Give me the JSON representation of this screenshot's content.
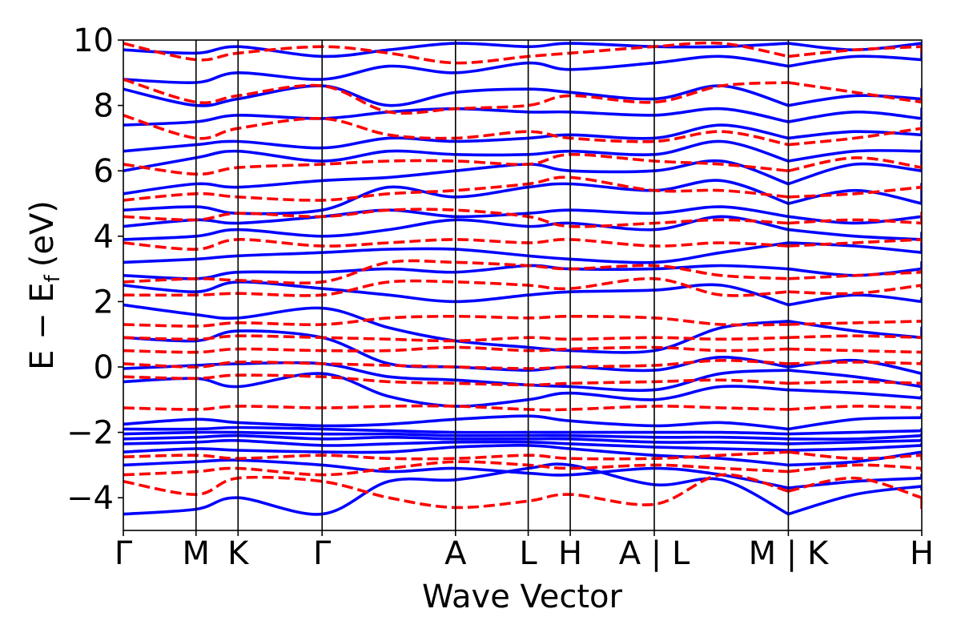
{
  "chart_data": {
    "type": "line",
    "title": "",
    "xlabel": "Wave Vector",
    "ylabel": "E − E_f (eV)",
    "ylabel_parts": {
      "main": "E − E",
      "sub": "f",
      "unit": "(eV)"
    },
    "ylim": [
      -5,
      10
    ],
    "yticks": [
      -4,
      -2,
      0,
      2,
      4,
      6,
      8,
      10
    ],
    "ytick_labels": [
      "−4",
      "−2",
      "0",
      "2",
      "4",
      "6",
      "8",
      "10"
    ],
    "kpath_labels": [
      "Γ",
      "M",
      "K",
      "Γ",
      "A",
      "L",
      "H",
      "A | L",
      "M | K",
      "H"
    ],
    "kpath_positions": [
      0.0,
      0.545,
      0.86,
      1.49,
      2.49,
      3.035,
      3.35,
      3.98,
      4.985,
      5.985
    ],
    "path_breaks": [
      3.98,
      4.985
    ],
    "xlim": [
      0.0,
      5.985
    ],
    "grid": false,
    "legend": "none",
    "series": [
      {
        "style": "solid",
        "color": "#0000ff",
        "nodes": [
          -4.5,
          -4.35,
          -4.0,
          -4.5,
          -3.5,
          -3.45,
          -3.1,
          -3.0,
          -3.6,
          -3.45,
          -4.5,
          -3.9,
          -3.65,
          -3.75
        ]
      },
      {
        "style": "solid",
        "color": "#0000ff",
        "nodes": [
          -3.0,
          -2.9,
          -2.85,
          -3.0,
          -3.2,
          -3.1,
          -3.25,
          -3.3,
          -3.1,
          -3.3,
          -3.7,
          -3.5,
          -3.4,
          -3.3
        ]
      },
      {
        "style": "solid",
        "color": "#0000ff",
        "nodes": [
          -2.6,
          -2.5,
          -2.55,
          -2.6,
          -2.6,
          -2.45,
          -2.4,
          -2.5,
          -2.7,
          -2.8,
          -3.0,
          -2.9,
          -2.6,
          -2.7
        ]
      },
      {
        "style": "solid",
        "color": "#0000ff",
        "nodes": [
          -2.35,
          -2.3,
          -2.25,
          -2.4,
          -2.35,
          -2.3,
          -2.3,
          -2.35,
          -2.45,
          -2.5,
          -2.55,
          -2.5,
          -2.4,
          -2.35
        ]
      },
      {
        "style": "solid",
        "color": "#0000ff",
        "nodes": [
          -2.2,
          -2.15,
          -2.1,
          -2.2,
          -2.15,
          -2.2,
          -2.2,
          -2.2,
          -2.3,
          -2.3,
          -2.35,
          -2.3,
          -2.25,
          -2.2
        ]
      },
      {
        "style": "solid",
        "color": "#0000ff",
        "nodes": [
          -2.05,
          -2.0,
          -2.0,
          -2.05,
          -2.05,
          -2.1,
          -2.1,
          -2.1,
          -2.15,
          -2.15,
          -2.2,
          -2.2,
          -2.1,
          -2.05
        ]
      },
      {
        "style": "solid",
        "color": "#0000ff",
        "nodes": [
          -1.9,
          -1.9,
          -1.85,
          -1.9,
          -1.95,
          -2.0,
          -2.0,
          -2.0,
          -2.0,
          -2.0,
          -2.05,
          -2.0,
          -1.95,
          -1.9
        ]
      },
      {
        "style": "solid",
        "color": "#0000ff",
        "nodes": [
          -1.75,
          -1.6,
          -1.7,
          -1.8,
          -1.75,
          -1.6,
          -1.5,
          -1.65,
          -1.8,
          -1.7,
          -1.9,
          -1.6,
          -1.55,
          -1.45
        ]
      },
      {
        "style": "solid",
        "color": "#0000ff",
        "nodes": [
          -0.45,
          -0.35,
          -0.6,
          -0.2,
          -0.9,
          -1.2,
          -1.0,
          -0.8,
          -1.0,
          -0.6,
          -0.7,
          -0.8,
          -0.95,
          -0.9
        ]
      },
      {
        "style": "solid",
        "color": "#0000ff",
        "nodes": [
          -0.05,
          0.05,
          0.1,
          0.1,
          -0.3,
          -0.4,
          -0.55,
          -0.6,
          -0.7,
          -0.2,
          -0.1,
          -0.3,
          -0.6,
          -0.7
        ]
      },
      {
        "style": "solid",
        "color": "#0000ff",
        "nodes": [
          0.9,
          0.8,
          1.1,
          0.9,
          0.1,
          0.0,
          -0.1,
          0.0,
          -0.1,
          0.3,
          0.0,
          0.2,
          -0.2,
          -0.5
        ]
      },
      {
        "style": "solid",
        "color": "#0000ff",
        "nodes": [
          1.9,
          1.6,
          1.5,
          1.8,
          1.2,
          0.8,
          0.6,
          0.5,
          0.5,
          1.2,
          1.4,
          1.1,
          0.9,
          1.2
        ]
      },
      {
        "style": "solid",
        "color": "#0000ff",
        "nodes": [
          2.5,
          2.3,
          2.6,
          2.4,
          2.2,
          2.0,
          2.2,
          2.3,
          2.35,
          2.5,
          1.9,
          2.2,
          2.0,
          2.1
        ]
      },
      {
        "style": "solid",
        "color": "#0000ff",
        "nodes": [
          2.8,
          2.7,
          2.9,
          2.9,
          3.0,
          2.9,
          3.1,
          3.0,
          3.0,
          3.1,
          3.0,
          2.8,
          3.0,
          3.2
        ]
      },
      {
        "style": "solid",
        "color": "#0000ff",
        "nodes": [
          3.2,
          3.3,
          3.4,
          3.5,
          3.6,
          3.6,
          3.4,
          3.3,
          3.2,
          3.5,
          3.8,
          3.7,
          3.5,
          3.8
        ]
      },
      {
        "style": "solid",
        "color": "#0000ff",
        "nodes": [
          3.9,
          4.0,
          4.2,
          4.0,
          4.2,
          4.5,
          4.3,
          4.4,
          4.2,
          4.6,
          4.2,
          4.0,
          3.9,
          4.1
        ]
      },
      {
        "style": "solid",
        "color": "#0000ff",
        "nodes": [
          4.3,
          4.5,
          4.4,
          4.6,
          4.8,
          4.6,
          4.7,
          4.8,
          4.7,
          4.9,
          4.6,
          4.4,
          4.6,
          4.5
        ]
      },
      {
        "style": "solid",
        "color": "#0000ff",
        "nodes": [
          4.8,
          4.9,
          4.7,
          4.8,
          5.5,
          5.2,
          5.5,
          5.6,
          5.4,
          5.7,
          5.0,
          5.4,
          5.0,
          5.6
        ]
      },
      {
        "style": "solid",
        "color": "#0000ff",
        "nodes": [
          5.3,
          5.6,
          5.5,
          5.7,
          5.8,
          6.0,
          6.2,
          6.0,
          6.0,
          6.3,
          5.6,
          6.2,
          6.0,
          6.5
        ]
      },
      {
        "style": "solid",
        "color": "#0000ff",
        "nodes": [
          6.0,
          6.4,
          6.6,
          6.3,
          6.6,
          6.5,
          6.5,
          6.6,
          6.5,
          6.9,
          6.3,
          6.6,
          6.6,
          6.9
        ]
      },
      {
        "style": "solid",
        "color": "#0000ff",
        "nodes": [
          6.6,
          6.8,
          6.9,
          6.7,
          7.0,
          6.9,
          7.0,
          7.1,
          7.0,
          7.4,
          7.0,
          7.2,
          7.1,
          7.5
        ]
      },
      {
        "style": "solid",
        "color": "#0000ff",
        "nodes": [
          7.4,
          7.5,
          7.7,
          7.6,
          7.8,
          7.9,
          7.8,
          7.8,
          7.7,
          7.9,
          7.5,
          7.8,
          7.6,
          7.9
        ]
      },
      {
        "style": "solid",
        "color": "#0000ff",
        "nodes": [
          8.5,
          8.0,
          8.2,
          8.6,
          8.0,
          8.4,
          8.5,
          8.4,
          8.2,
          8.6,
          8.0,
          8.3,
          8.2,
          8.5
        ]
      },
      {
        "style": "solid",
        "color": "#0000ff",
        "nodes": [
          8.8,
          8.7,
          9.0,
          8.8,
          9.2,
          9.0,
          9.3,
          9.1,
          9.3,
          9.5,
          9.2,
          9.5,
          9.4,
          9.7
        ]
      },
      {
        "style": "solid",
        "color": "#0000ff",
        "nodes": [
          9.7,
          9.6,
          9.8,
          9.5,
          9.7,
          9.9,
          9.8,
          9.9,
          9.8,
          9.8,
          9.9,
          9.7,
          9.9,
          9.8
        ]
      },
      {
        "style": "dashed",
        "color": "#ff0000",
        "nodes": [
          -3.5,
          -3.9,
          -3.4,
          -3.5,
          -4.0,
          -4.3,
          -4.1,
          -3.9,
          -4.2,
          -3.3,
          -3.8,
          -3.4,
          -4.0,
          -4.4
        ]
      },
      {
        "style": "dashed",
        "color": "#ff0000",
        "nodes": [
          -3.3,
          -3.2,
          -3.1,
          -3.3,
          -3.1,
          -2.9,
          -3.0,
          -3.1,
          -3.0,
          -3.1,
          -3.2,
          -3.0,
          -3.1,
          -3.2
        ]
      },
      {
        "style": "dashed",
        "color": "#ff0000",
        "nodes": [
          -2.75,
          -2.7,
          -2.8,
          -2.7,
          -2.8,
          -2.8,
          -2.7,
          -2.8,
          -2.8,
          -2.7,
          -2.6,
          -2.8,
          -2.7,
          -2.85
        ]
      },
      {
        "style": "dashed",
        "color": "#ff0000",
        "nodes": [
          -1.25,
          -1.3,
          -1.2,
          -1.25,
          -1.2,
          -1.2,
          -1.3,
          -1.3,
          -1.2,
          -1.25,
          -1.3,
          -1.2,
          -1.25,
          -1.2
        ]
      },
      {
        "style": "dashed",
        "color": "#ff0000",
        "nodes": [
          -0.3,
          -0.35,
          -0.25,
          -0.3,
          -0.45,
          -0.5,
          -0.55,
          -0.5,
          -0.45,
          -0.4,
          -0.5,
          -0.45,
          -0.5,
          -0.45
        ]
      },
      {
        "style": "dashed",
        "color": "#ff0000",
        "nodes": [
          0.1,
          0.0,
          0.15,
          0.1,
          0.05,
          0.0,
          -0.05,
          0.0,
          0.05,
          0.2,
          0.1,
          0.15,
          0.1,
          0.2
        ]
      },
      {
        "style": "dashed",
        "color": "#ff0000",
        "nodes": [
          0.5,
          0.45,
          0.55,
          0.5,
          0.5,
          0.6,
          0.5,
          0.55,
          0.6,
          0.5,
          0.55,
          0.5,
          0.45,
          0.5
        ]
      },
      {
        "style": "dashed",
        "color": "#ff0000",
        "nodes": [
          0.9,
          0.85,
          0.95,
          0.9,
          0.85,
          0.8,
          0.9,
          0.85,
          0.9,
          0.85,
          0.9,
          0.95,
          0.9,
          0.85
        ]
      },
      {
        "style": "dashed",
        "color": "#ff0000",
        "nodes": [
          1.3,
          1.25,
          1.35,
          1.3,
          1.5,
          1.55,
          1.5,
          1.55,
          1.5,
          1.3,
          1.3,
          1.35,
          1.4,
          1.35
        ]
      },
      {
        "style": "dashed",
        "color": "#ff0000",
        "nodes": [
          2.2,
          2.2,
          2.25,
          2.2,
          2.6,
          2.6,
          2.5,
          2.4,
          2.7,
          2.2,
          2.3,
          2.25,
          2.5,
          2.4
        ]
      },
      {
        "style": "dashed",
        "color": "#ff0000",
        "nodes": [
          2.6,
          2.7,
          2.65,
          2.6,
          3.2,
          3.2,
          3.1,
          3.0,
          3.1,
          2.8,
          2.7,
          2.8,
          2.9,
          3.0
        ]
      },
      {
        "style": "dashed",
        "color": "#ff0000",
        "nodes": [
          3.8,
          3.6,
          3.9,
          3.7,
          3.8,
          3.9,
          3.8,
          3.9,
          3.7,
          3.8,
          3.7,
          3.8,
          3.9,
          3.8
        ]
      },
      {
        "style": "dashed",
        "color": "#ff0000",
        "nodes": [
          4.6,
          4.5,
          4.7,
          4.6,
          4.8,
          4.8,
          4.6,
          4.3,
          4.4,
          4.5,
          4.4,
          4.5,
          4.4,
          4.8
        ]
      },
      {
        "style": "dashed",
        "color": "#ff0000",
        "nodes": [
          5.1,
          5.3,
          5.2,
          5.1,
          5.3,
          5.4,
          5.6,
          5.8,
          5.4,
          5.4,
          5.2,
          5.3,
          5.5,
          5.4
        ]
      },
      {
        "style": "dashed",
        "color": "#ff0000",
        "nodes": [
          6.2,
          5.9,
          6.1,
          6.2,
          6.3,
          6.3,
          6.2,
          6.5,
          6.3,
          6.2,
          6.0,
          6.4,
          6.1,
          6.2
        ]
      },
      {
        "style": "dashed",
        "color": "#ff0000",
        "nodes": [
          7.7,
          7.0,
          7.3,
          7.6,
          7.1,
          7.0,
          7.2,
          7.0,
          6.9,
          7.2,
          6.8,
          7.0,
          7.3,
          7.2
        ]
      },
      {
        "style": "dashed",
        "color": "#ff0000",
        "nodes": [
          8.8,
          8.1,
          8.3,
          8.6,
          7.8,
          7.9,
          8.0,
          8.3,
          8.1,
          8.6,
          8.7,
          8.4,
          8.1,
          8.3
        ]
      },
      {
        "style": "dashed",
        "color": "#ff0000",
        "nodes": [
          9.9,
          9.4,
          9.6,
          9.8,
          9.6,
          9.3,
          9.5,
          9.6,
          9.8,
          9.9,
          9.5,
          9.7,
          9.8,
          9.6
        ]
      }
    ]
  }
}
